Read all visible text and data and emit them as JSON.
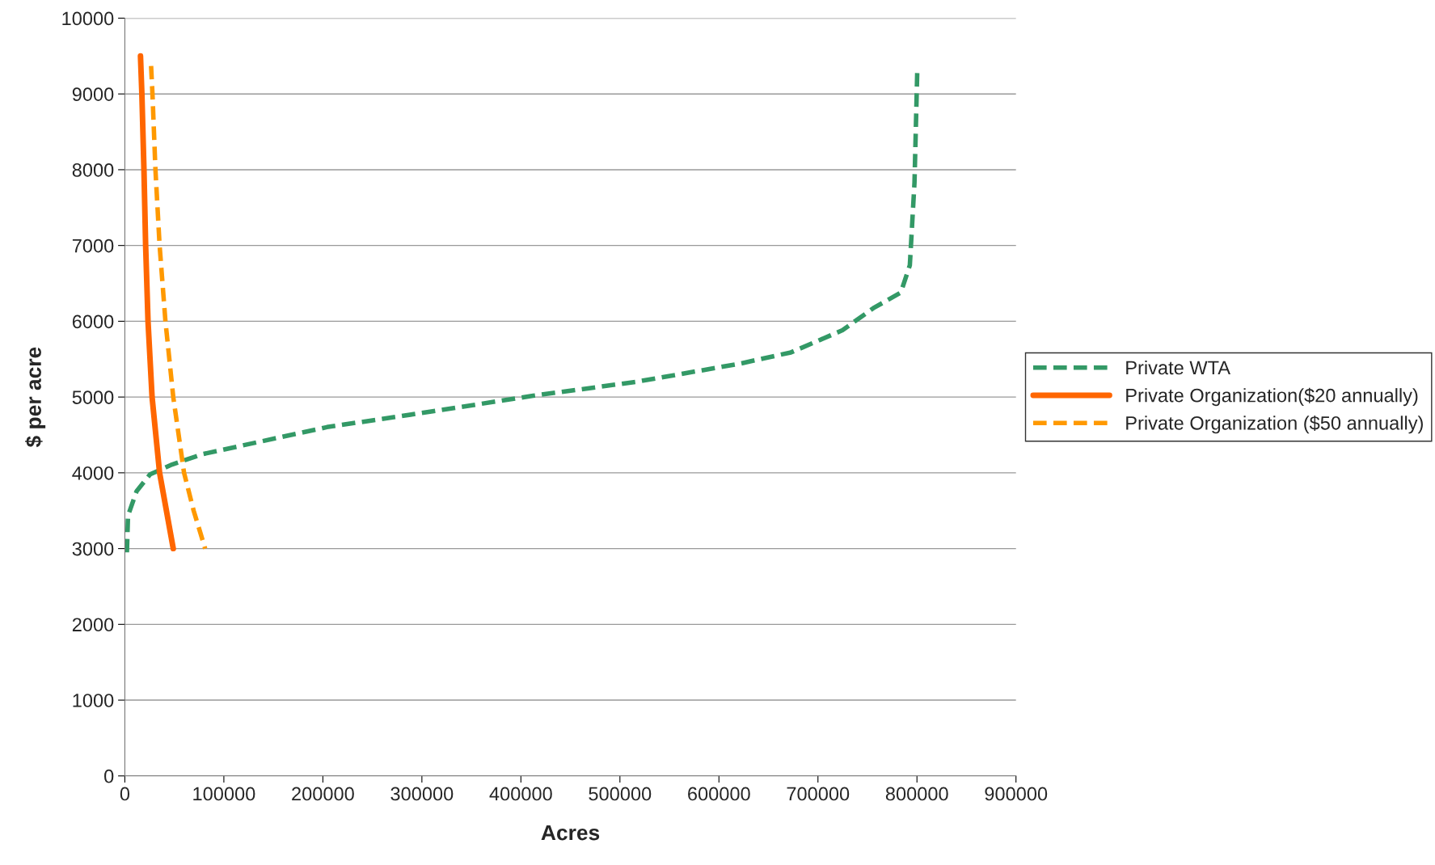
{
  "chart_data": {
    "type": "line",
    "xlabel": "Acres",
    "ylabel": "$ per acre",
    "xlim": [
      0,
      900000
    ],
    "xticks": [
      0,
      100000,
      200000,
      300000,
      400000,
      500000,
      600000,
      700000,
      800000,
      900000
    ],
    "ylim": [
      0,
      10000
    ],
    "yticks": [
      0,
      1000,
      2000,
      3000,
      4000,
      5000,
      6000,
      7000,
      8000,
      9000,
      10000
    ],
    "grid": "y",
    "legend": "right",
    "marker": "none",
    "series": [
      {
        "name": "Private WTA",
        "color": "#339966",
        "line_style": "dashed",
        "x": [
          2100,
          3200,
          11800,
          25500,
          47800,
          79100,
          204100,
          308200,
          412300,
          516500,
          620600,
          672700,
          724700,
          755900,
          783700,
          792800,
          797500,
          800300
        ],
        "values": [
          2950,
          3435,
          3755,
          3980,
          4110,
          4248,
          4603,
          4806,
          5017,
          5201,
          5439,
          5589,
          5881,
          6173,
          6379,
          6739,
          7830,
          9300
        ]
      },
      {
        "name": "Private Organization($20 annually)",
        "color": "#ff6600",
        "line_style": "solid",
        "x": [
          15800,
          17200,
          19300,
          21000,
          23400,
          27500,
          35100,
          48900
        ],
        "values": [
          9500,
          9000,
          8000,
          7000,
          6000,
          5000,
          4000,
          3000
        ]
      },
      {
        "name": "Private Organization ($50 annually)",
        "color": "#ff9900",
        "line_style": "dashed",
        "x": [
          26500,
          27900,
          30900,
          35100,
          41000,
          48900,
          59800,
          69500,
          81100
        ],
        "values": [
          9370,
          9000,
          8000,
          7000,
          6000,
          5000,
          4000,
          3500,
          3000
        ]
      }
    ]
  }
}
